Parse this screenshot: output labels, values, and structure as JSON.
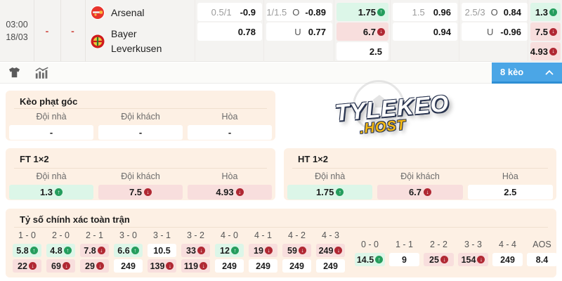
{
  "colors": {
    "accent_blue": "#4ba6e6",
    "green_cell": "#dcf6e8",
    "red_cell": "#f8dedd",
    "up_icon_green": "#259d5d",
    "down_icon_red": "#b02833",
    "panel_peach": "#fdf0e4",
    "header_gray": "#f4f3f1",
    "dash_red": "#cf4a42",
    "watermark_gold": "#f5b913"
  },
  "match": {
    "time": "03:00",
    "date": "18/03",
    "dash1": "-",
    "dash2": "-",
    "home_team": "Arsenal",
    "away_team_line1": "Bayer",
    "away_team_line2": "Leverkusen"
  },
  "odds": {
    "hdp1": {
      "ratio": "0.5/1",
      "home": "-0.9",
      "away": "0.78"
    },
    "ou1": {
      "ratio": "1/1.5",
      "over_side": "O",
      "over": "-0.89",
      "under_side": "U",
      "under": "0.77"
    },
    "x12a": {
      "home": "1.75",
      "away": "6.7",
      "draw": "2.5"
    },
    "hdp2": {
      "ratio": "1.5",
      "home": "0.96",
      "away": "0.94"
    },
    "ou2": {
      "ratio": "2.5/3",
      "over_side": "O",
      "over": "0.84",
      "under_side": "U",
      "under": "-0.96"
    },
    "x12b": {
      "home": "1.3",
      "away": "7.5",
      "draw": "4.93"
    }
  },
  "toolbar": {
    "keo_button": "8 kèo"
  },
  "watermark": {
    "line1": "TYLEKEO",
    "line2": ".HOST"
  },
  "corner": {
    "title": "Kèo phạt góc",
    "headers": [
      "Đội nhà",
      "Đội khách",
      "Hòa"
    ],
    "values": [
      "-",
      "-",
      "-"
    ]
  },
  "ft": {
    "title": "FT 1×2",
    "headers": [
      "Đội nhà",
      "Đội khách",
      "Hòa"
    ],
    "home": "1.3",
    "away": "7.5",
    "draw": "4.93"
  },
  "ht": {
    "title": "HT 1×2",
    "headers": [
      "Đội nhà",
      "Đội khách",
      "Hòa"
    ],
    "home": "1.75",
    "away": "6.7",
    "draw": "2.5"
  },
  "score": {
    "title": "Tỷ số chính xác toàn trận",
    "main_columns": [
      {
        "label": "1 - 0",
        "top": {
          "value": "5.8",
          "tone": "green",
          "trend": "up"
        },
        "bottom": {
          "value": "22",
          "tone": "red",
          "trend": "down"
        }
      },
      {
        "label": "2 - 0",
        "top": {
          "value": "4.8",
          "tone": "green",
          "trend": "up"
        },
        "bottom": {
          "value": "69",
          "tone": "red",
          "trend": "down"
        }
      },
      {
        "label": "2 - 1",
        "top": {
          "value": "7.8",
          "tone": "red",
          "trend": "down"
        },
        "bottom": {
          "value": "29",
          "tone": "red",
          "trend": "down"
        }
      },
      {
        "label": "3 - 0",
        "top": {
          "value": "6.6",
          "tone": "green",
          "trend": "up"
        },
        "bottom": {
          "value": "249",
          "tone": "white",
          "trend": ""
        }
      },
      {
        "label": "3 - 1",
        "top": {
          "value": "10.5",
          "tone": "white",
          "trend": ""
        },
        "bottom": {
          "value": "139",
          "tone": "red",
          "trend": "down"
        }
      },
      {
        "label": "3 - 2",
        "top": {
          "value": "33",
          "tone": "red",
          "trend": "down"
        },
        "bottom": {
          "value": "119",
          "tone": "red",
          "trend": "down"
        }
      },
      {
        "label": "4 - 0",
        "top": {
          "value": "12",
          "tone": "green",
          "trend": "up"
        },
        "bottom": {
          "value": "249",
          "tone": "white",
          "trend": ""
        }
      },
      {
        "label": "4 - 1",
        "top": {
          "value": "19",
          "tone": "red",
          "trend": "down"
        },
        "bottom": {
          "value": "249",
          "tone": "white",
          "trend": ""
        }
      },
      {
        "label": "4 - 2",
        "top": {
          "value": "59",
          "tone": "red",
          "trend": "down"
        },
        "bottom": {
          "value": "249",
          "tone": "white",
          "trend": ""
        }
      },
      {
        "label": "4 - 3",
        "top": {
          "value": "249",
          "tone": "red",
          "trend": "down"
        },
        "bottom": {
          "value": "249",
          "tone": "white",
          "trend": ""
        }
      }
    ],
    "draw_columns": [
      {
        "label": "0 - 0",
        "value": "14.5",
        "tone": "green",
        "trend": "up"
      },
      {
        "label": "1 - 1",
        "value": "9",
        "tone": "white",
        "trend": ""
      },
      {
        "label": "2 - 2",
        "value": "25",
        "tone": "red",
        "trend": "down"
      },
      {
        "label": "3 - 3",
        "value": "154",
        "tone": "red",
        "trend": "down"
      },
      {
        "label": "4 - 4",
        "value": "249",
        "tone": "white",
        "trend": ""
      },
      {
        "label": "AOS",
        "value": "8.4",
        "tone": "white",
        "trend": ""
      }
    ]
  }
}
